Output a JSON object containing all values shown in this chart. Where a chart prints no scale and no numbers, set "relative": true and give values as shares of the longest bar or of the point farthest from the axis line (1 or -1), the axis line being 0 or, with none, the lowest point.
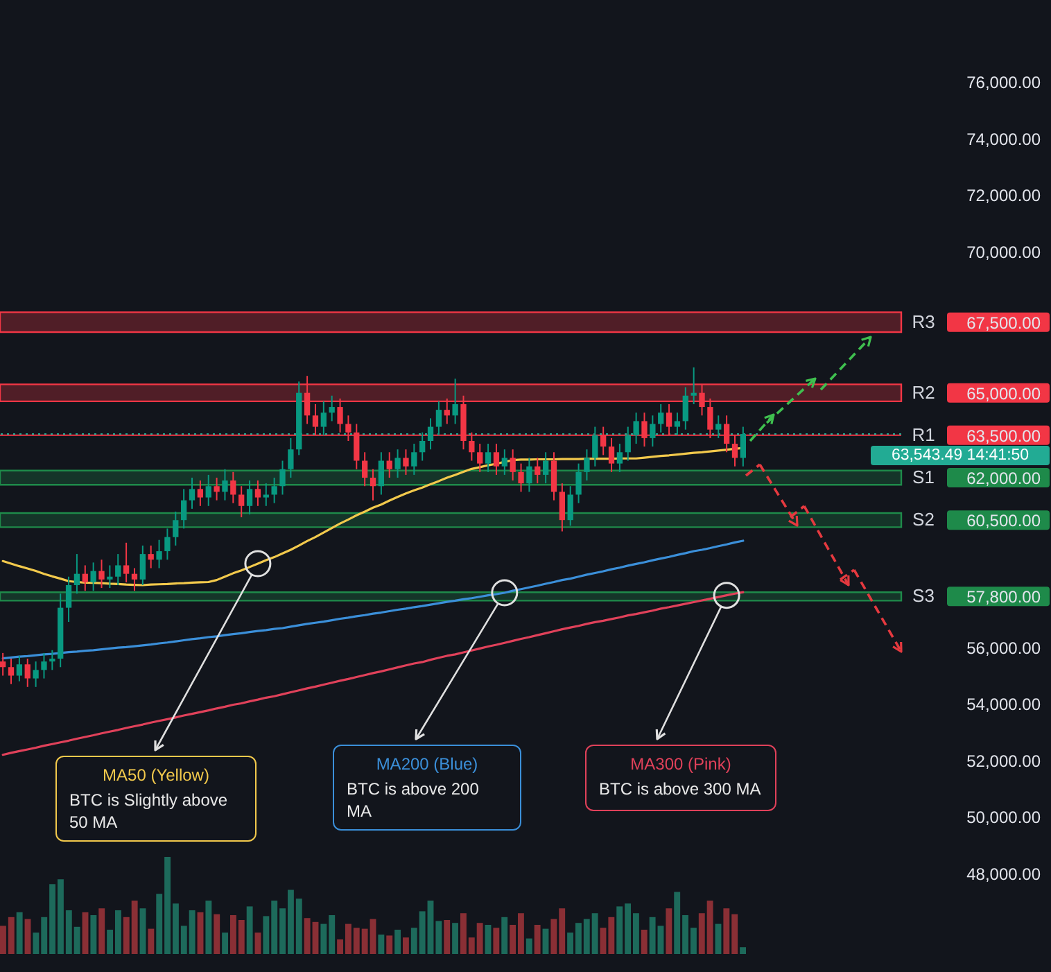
{
  "chart_data": [
    {
      "type": "candlestick",
      "ylim": [
        48000,
        76000
      ],
      "yticks": [
        {
          "value": 48000,
          "label": "48,000.00"
        },
        {
          "value": 50000,
          "label": "50,000.00"
        },
        {
          "value": 52000,
          "label": "52,000.00"
        },
        {
          "value": 54000,
          "label": "54,000.00"
        },
        {
          "value": 56000,
          "label": "56,000.00"
        },
        {
          "value": 57800,
          "label": "57,800.00"
        },
        {
          "value": 60500,
          "label": "60,500.00"
        },
        {
          "value": 62000,
          "label": "62,000.00"
        },
        {
          "value": 63500,
          "label": "63,500.00"
        },
        {
          "value": 65000,
          "label": "65,000.00"
        },
        {
          "value": 67500,
          "label": "67,500.00"
        },
        {
          "value": 70000,
          "label": "70,000.00"
        },
        {
          "value": 72000,
          "label": "72,000.00"
        },
        {
          "value": 74000,
          "label": "74,000.00"
        },
        {
          "value": 76000,
          "label": "76,000.00"
        }
      ],
      "categories": [
        null,
        null,
        null,
        null,
        null,
        null,
        null,
        null,
        null,
        null,
        null,
        null,
        null,
        null,
        null,
        null,
        null,
        null,
        null,
        null,
        null,
        null,
        null,
        null,
        null,
        null,
        null,
        null,
        null,
        null,
        null,
        null,
        null,
        null,
        null,
        null,
        null,
        null,
        null,
        null,
        null,
        null,
        null,
        null,
        null,
        null,
        null,
        null,
        null,
        null,
        null,
        null,
        null,
        null,
        null,
        null,
        null,
        null,
        null,
        null,
        null,
        null,
        null,
        null,
        null,
        null,
        null,
        null,
        null,
        null,
        null,
        null,
        null,
        null,
        null,
        null,
        null,
        null,
        null,
        null,
        null,
        null,
        null,
        null,
        null,
        null,
        null,
        null,
        null,
        null,
        null
      ],
      "ohlc": [
        [
          55500,
          55800,
          55000,
          55300
        ],
        [
          55300,
          55600,
          54700,
          55000
        ],
        [
          55000,
          55700,
          54800,
          55400
        ],
        [
          55400,
          55600,
          54600,
          54900
        ],
        [
          54900,
          55500,
          54600,
          55200
        ],
        [
          55200,
          55800,
          54900,
          55500
        ],
        [
          55500,
          55900,
          55200,
          55600
        ],
        [
          55600,
          57900,
          55300,
          57400
        ],
        [
          57400,
          58500,
          56900,
          58200
        ],
        [
          58200,
          59300,
          57900,
          58600
        ],
        [
          58600,
          58900,
          58000,
          58300
        ],
        [
          58300,
          59000,
          58000,
          58700
        ],
        [
          58700,
          59100,
          58100,
          58400
        ],
        [
          58400,
          58900,
          58100,
          58500
        ],
        [
          58500,
          59300,
          58200,
          58900
        ],
        [
          58900,
          59700,
          58300,
          58600
        ],
        [
          58600,
          58800,
          58000,
          58400
        ],
        [
          58400,
          59600,
          58200,
          59300
        ],
        [
          59300,
          59600,
          58800,
          59100
        ],
        [
          59100,
          59800,
          58800,
          59400
        ],
        [
          59400,
          60200,
          59100,
          59900
        ],
        [
          59900,
          60800,
          59600,
          60500
        ],
        [
          60500,
          61600,
          60200,
          61200
        ],
        [
          61200,
          62000,
          60900,
          61600
        ],
        [
          61600,
          61900,
          61000,
          61300
        ],
        [
          61300,
          62100,
          61000,
          61700
        ],
        [
          61700,
          62000,
          61200,
          61500
        ],
        [
          61500,
          62300,
          61200,
          61900
        ],
        [
          61900,
          62200,
          61100,
          61400
        ],
        [
          61400,
          61700,
          60600,
          61000
        ],
        [
          61000,
          61900,
          60700,
          61600
        ],
        [
          61600,
          61900,
          61000,
          61300
        ],
        [
          61300,
          61800,
          61000,
          61400
        ],
        [
          61400,
          62000,
          61100,
          61700
        ],
        [
          61700,
          62600,
          61400,
          62300
        ],
        [
          62300,
          63400,
          62000,
          63000
        ],
        [
          63000,
          65400,
          62800,
          65000
        ],
        [
          65000,
          65600,
          63900,
          64200
        ],
        [
          64200,
          64600,
          63500,
          63800
        ],
        [
          63800,
          64700,
          63500,
          64300
        ],
        [
          64300,
          64900,
          64000,
          64500
        ],
        [
          64500,
          64800,
          63600,
          63900
        ],
        [
          63900,
          64200,
          63300,
          63600
        ],
        [
          63600,
          63900,
          62300,
          62600
        ],
        [
          62600,
          62900,
          61700,
          62000
        ],
        [
          62000,
          62300,
          61200,
          61700
        ],
        [
          61700,
          62900,
          61400,
          62600
        ],
        [
          62600,
          62900,
          62000,
          62300
        ],
        [
          62300,
          63000,
          62000,
          62700
        ],
        [
          62700,
          63000,
          62100,
          62400
        ],
        [
          62400,
          63200,
          62100,
          62900
        ],
        [
          62900,
          63600,
          62600,
          63300
        ],
        [
          63300,
          64100,
          63000,
          63800
        ],
        [
          63800,
          64700,
          63500,
          64400
        ],
        [
          64400,
          64800,
          63900,
          64200
        ],
        [
          64200,
          65500,
          63900,
          64600
        ],
        [
          64600,
          64900,
          63000,
          63300
        ],
        [
          63300,
          63600,
          62600,
          62900
        ],
        [
          62900,
          63200,
          62200,
          62500
        ],
        [
          62500,
          63200,
          62200,
          62900
        ],
        [
          62900,
          63200,
          62100,
          62400
        ],
        [
          62400,
          63000,
          62100,
          62700
        ],
        [
          62700,
          63000,
          61900,
          62200
        ],
        [
          62200,
          62500,
          61500,
          61800
        ],
        [
          61800,
          62700,
          61500,
          62400
        ],
        [
          62400,
          62700,
          61800,
          62100
        ],
        [
          62100,
          62900,
          61800,
          62600
        ],
        [
          62600,
          62900,
          61200,
          61500
        ],
        [
          61500,
          61800,
          60100,
          60500
        ],
        [
          60500,
          61700,
          60300,
          61400
        ],
        [
          61400,
          62500,
          61100,
          62200
        ],
        [
          62200,
          63000,
          61900,
          62700
        ],
        [
          62700,
          63800,
          62400,
          63500
        ],
        [
          63500,
          63800,
          62800,
          63100
        ],
        [
          63100,
          63400,
          62200,
          62500
        ],
        [
          62500,
          63200,
          62200,
          62900
        ],
        [
          62900,
          63800,
          62600,
          63500
        ],
        [
          63500,
          64300,
          63200,
          64000
        ],
        [
          64000,
          64300,
          63100,
          63400
        ],
        [
          63400,
          64200,
          63100,
          63900
        ],
        [
          63900,
          64600,
          63600,
          64300
        ],
        [
          64300,
          64600,
          63500,
          63800
        ],
        [
          63800,
          64300,
          63500,
          64000
        ],
        [
          64000,
          65200,
          63700,
          64900
        ],
        [
          64900,
          65900,
          64600,
          65000
        ],
        [
          65000,
          65300,
          64200,
          64500
        ],
        [
          64500,
          64800,
          63400,
          63700
        ],
        [
          63700,
          64200,
          63400,
          63900
        ],
        [
          63900,
          64200,
          62900,
          63200
        ],
        [
          63200,
          63500,
          62400,
          62700
        ],
        [
          62700,
          63800,
          62400,
          63543.49
        ]
      ],
      "colors": [
        "#f23645",
        "#f23645",
        "#089981",
        "#f23645",
        "#089981",
        "#089981",
        "#089981",
        "#089981",
        "#089981",
        "#089981",
        "#f23645",
        "#089981",
        "#f23645",
        "#089981",
        "#089981",
        "#f23645",
        "#f23645",
        "#089981",
        "#f23645",
        "#089981",
        "#089981",
        "#089981",
        "#089981",
        "#089981",
        "#f23645",
        "#089981",
        "#f23645",
        "#089981",
        "#f23645",
        "#f23645",
        "#089981",
        "#f23645",
        "#089981",
        "#089981",
        "#089981",
        "#089981",
        "#089981",
        "#f23645",
        "#f23645",
        "#089981",
        "#089981",
        "#f23645",
        "#f23645",
        "#f23645",
        "#f23645",
        "#f23645",
        "#089981",
        "#f23645",
        "#089981",
        "#f23645",
        "#089981",
        "#089981",
        "#089981",
        "#089981",
        "#f23645",
        "#089981",
        "#f23645",
        "#f23645",
        "#f23645",
        "#089981",
        "#f23645",
        "#089981",
        "#f23645",
        "#f23645",
        "#089981",
        "#f23645",
        "#089981",
        "#f23645",
        "#f23645",
        "#089981",
        "#089981",
        "#089981",
        "#089981",
        "#f23645",
        "#f23645",
        "#089981",
        "#089981",
        "#089981",
        "#f23645",
        "#089981",
        "#089981",
        "#f23645",
        "#089981",
        "#089981",
        "#089981",
        "#f23645",
        "#f23645",
        "#089981",
        "#f23645",
        "#f23645",
        "#089981"
      ],
      "series": [
        {
          "type": "line",
          "color": "#f2c94c",
          "values": [
            59050,
            58960,
            58870,
            58790,
            58700,
            58600,
            58510,
            58430,
            58340,
            58310,
            58290,
            58280,
            58270,
            58250,
            58240,
            58220,
            58210,
            58200,
            58220,
            58230,
            58240,
            58260,
            58270,
            58290,
            58300,
            58310,
            58380,
            58500,
            58620,
            58720,
            58840,
            58960,
            59080,
            59190,
            59320,
            59450,
            59600,
            59760,
            59900,
            60060,
            60220,
            60380,
            60520,
            60670,
            60800,
            60940,
            61050,
            61190,
            61320,
            61440,
            61550,
            61650,
            61770,
            61880,
            62000,
            62100,
            62210,
            62310,
            62370,
            62440,
            62490,
            62560,
            62620,
            62640,
            62640,
            62650,
            62650,
            62650,
            62660,
            62660,
            62660,
            62670,
            62670,
            62670,
            62670,
            62680,
            62680,
            62680,
            62710,
            62740,
            62770,
            62790,
            62820,
            62850,
            62880,
            62900,
            62930,
            62960,
            62990,
            63020,
            63050
          ]
        },
        {
          "type": "line",
          "color": "#3b8fd9",
          "values": [
            55610,
            55640,
            55670,
            55690,
            55720,
            55750,
            55770,
            55800,
            55830,
            55850,
            55880,
            55900,
            55930,
            55960,
            55990,
            56010,
            56040,
            56070,
            56100,
            56140,
            56170,
            56210,
            56250,
            56290,
            56320,
            56360,
            56390,
            56430,
            56470,
            56500,
            56540,
            56580,
            56610,
            56650,
            56680,
            56730,
            56780,
            56830,
            56870,
            56910,
            56960,
            57010,
            57050,
            57100,
            57140,
            57190,
            57230,
            57280,
            57330,
            57370,
            57420,
            57460,
            57510,
            57560,
            57610,
            57650,
            57700,
            57740,
            57790,
            57840,
            57880,
            57930,
            58000,
            58060,
            58120,
            58180,
            58250,
            58310,
            58380,
            58430,
            58500,
            58570,
            58630,
            58690,
            58760,
            58820,
            58890,
            58950,
            59010,
            59080,
            59140,
            59200,
            59270,
            59330,
            59400,
            59450,
            59510,
            59580,
            59640,
            59710,
            59770
          ]
        },
        {
          "type": "line",
          "color": "#e0415a",
          "values": [
            52200,
            52270,
            52330,
            52390,
            52450,
            52520,
            52580,
            52640,
            52700,
            52770,
            52830,
            52890,
            52960,
            53020,
            53080,
            53150,
            53210,
            53270,
            53340,
            53400,
            53460,
            53520,
            53590,
            53650,
            53710,
            53770,
            53840,
            53900,
            53970,
            54020,
            54090,
            54150,
            54220,
            54270,
            54340,
            54410,
            54480,
            54550,
            54610,
            54680,
            54750,
            54820,
            54880,
            54950,
            55020,
            55090,
            55150,
            55220,
            55290,
            55360,
            55430,
            55480,
            55560,
            55630,
            55700,
            55750,
            55820,
            55890,
            55960,
            56030,
            56090,
            56160,
            56230,
            56300,
            56360,
            56430,
            56500,
            56570,
            56640,
            56700,
            56760,
            56830,
            56890,
            56940,
            57000,
            57060,
            57130,
            57180,
            57240,
            57300,
            57370,
            57420,
            57480,
            57540,
            57600,
            57660,
            57720,
            57780,
            57840,
            57900,
            57950
          ]
        }
      ],
      "bands": [
        {
          "axis": "y",
          "from": 67150,
          "to": 67850,
          "color": "#f23645",
          "label": "R3"
        },
        {
          "axis": "y",
          "from": 64700,
          "to": 65300,
          "color": "#f23645",
          "label": "R2"
        },
        {
          "axis": "y",
          "from": 61750,
          "to": 62250,
          "color": "#1e8a4a",
          "label": "S1"
        },
        {
          "axis": "y",
          "from": 60250,
          "to": 60750,
          "color": "#1e8a4a",
          "label": "S2"
        },
        {
          "axis": "y",
          "from": 57650,
          "to": 57950,
          "color": "#1e8a4a",
          "label": "S3"
        }
      ],
      "ref_lines": [
        {
          "axis": "y",
          "value": 63500,
          "label": "R1",
          "color": "#f23645"
        },
        {
          "axis": "y",
          "value": 63543.49,
          "label": "63,543.49\n14:41:50",
          "color": "#22ab94",
          "line_style": "dotted"
        }
      ],
      "annotations": [
        "MA50 (Yellow)\nBTC is Slightly above 50 MA",
        "MA200 (Blue)\nBTC is above 200 MA",
        "MA300 (Pink)\nBTC is above 300 MA"
      ]
    },
    {
      "type": "bar",
      "relative": true,
      "categories": [
        null,
        null,
        null,
        null,
        null,
        null,
        null,
        null,
        null,
        null,
        null,
        null,
        null,
        null,
        null,
        null,
        null,
        null,
        null,
        null,
        null,
        null,
        null,
        null,
        null,
        null,
        null,
        null,
        null,
        null,
        null,
        null,
        null,
        null,
        null,
        null,
        null,
        null,
        null,
        null,
        null,
        null,
        null,
        null,
        null,
        null,
        null,
        null,
        null,
        null,
        null,
        null,
        null,
        null,
        null,
        null,
        null,
        null,
        null,
        null,
        null,
        null,
        null,
        null,
        null,
        null,
        null,
        null,
        null,
        null,
        null,
        null,
        null,
        null,
        null,
        null,
        null,
        null,
        null,
        null,
        null,
        null,
        null,
        null,
        null,
        null,
        null,
        null,
        null,
        null,
        null
      ],
      "values": [
        0.29,
        0.38,
        0.43,
        0.36,
        0.22,
        0.38,
        0.72,
        0.77,
        0.45,
        0.28,
        0.43,
        0.4,
        0.47,
        0.25,
        0.45,
        0.38,
        0.55,
        0.47,
        0.26,
        0.62,
        1.0,
        0.52,
        0.29,
        0.45,
        0.43,
        0.55,
        0.41,
        0.22,
        0.4,
        0.35,
        0.49,
        0.22,
        0.39,
        0.55,
        0.47,
        0.66,
        0.57,
        0.37,
        0.33,
        0.31,
        0.4,
        0.15,
        0.31,
        0.27,
        0.26,
        0.36,
        0.2,
        0.19,
        0.25,
        0.17,
        0.27,
        0.44,
        0.55,
        0.34,
        0.35,
        0.32,
        0.42,
        0.17,
        0.32,
        0.3,
        0.27,
        0.38,
        0.3,
        0.42,
        0.16,
        0.3,
        0.26,
        0.36,
        0.47,
        0.22,
        0.32,
        0.36,
        0.42,
        0.27,
        0.38,
        0.49,
        0.52,
        0.42,
        0.25,
        0.38,
        0.29,
        0.47,
        0.64,
        0.4,
        0.27,
        0.42,
        0.55,
        0.31,
        0.47,
        0.41,
        0.07
      ],
      "colors": [
        "#8a2f35",
        "#8a2f35",
        "#1d6a5b",
        "#8a2f35",
        "#1d6a5b",
        "#1d6a5b",
        "#1d6a5b",
        "#1d6a5b",
        "#1d6a5b",
        "#1d6a5b",
        "#8a2f35",
        "#1d6a5b",
        "#8a2f35",
        "#1d6a5b",
        "#1d6a5b",
        "#8a2f35",
        "#8a2f35",
        "#1d6a5b",
        "#8a2f35",
        "#1d6a5b",
        "#1d6a5b",
        "#1d6a5b",
        "#1d6a5b",
        "#1d6a5b",
        "#8a2f35",
        "#1d6a5b",
        "#8a2f35",
        "#1d6a5b",
        "#8a2f35",
        "#8a2f35",
        "#1d6a5b",
        "#8a2f35",
        "#1d6a5b",
        "#1d6a5b",
        "#1d6a5b",
        "#1d6a5b",
        "#1d6a5b",
        "#8a2f35",
        "#8a2f35",
        "#1d6a5b",
        "#1d6a5b",
        "#8a2f35",
        "#8a2f35",
        "#8a2f35",
        "#8a2f35",
        "#8a2f35",
        "#1d6a5b",
        "#8a2f35",
        "#1d6a5b",
        "#8a2f35",
        "#1d6a5b",
        "#1d6a5b",
        "#1d6a5b",
        "#1d6a5b",
        "#8a2f35",
        "#1d6a5b",
        "#8a2f35",
        "#8a2f35",
        "#8a2f35",
        "#1d6a5b",
        "#8a2f35",
        "#1d6a5b",
        "#8a2f35",
        "#8a2f35",
        "#1d6a5b",
        "#8a2f35",
        "#1d6a5b",
        "#8a2f35",
        "#8a2f35",
        "#1d6a5b",
        "#1d6a5b",
        "#1d6a5b",
        "#1d6a5b",
        "#8a2f35",
        "#8a2f35",
        "#1d6a5b",
        "#1d6a5b",
        "#1d6a5b",
        "#8a2f35",
        "#1d6a5b",
        "#1d6a5b",
        "#8a2f35",
        "#1d6a5b",
        "#1d6a5b",
        "#1d6a5b",
        "#8a2f35",
        "#8a2f35",
        "#1d6a5b",
        "#8a2f35",
        "#8a2f35",
        "#1d6a5b"
      ]
    }
  ]
}
